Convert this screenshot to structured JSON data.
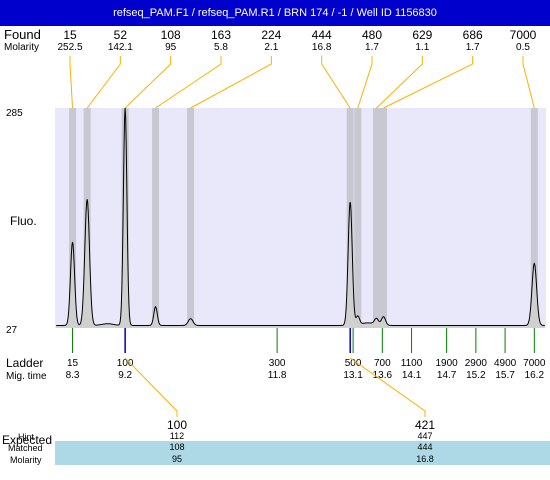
{
  "header": {
    "title": "refseq_PAM.F1 / refseq_PAM.R1 / BRN 174 / -1 / Well ID 1156830"
  },
  "labels": {
    "found": "Found",
    "molarity": "Molarity",
    "fluo": "Fluo.",
    "ladder": "Ladder",
    "mig_time": "Mig. time",
    "expected": "Expected",
    "hint": "Hint",
    "matched": "Matched",
    "molarity_bottom": "Molarity"
  },
  "colors": {
    "title_bar": "#0000cc",
    "plot_bg": "#e8e8fa",
    "peak_band": "#c8c8d2",
    "trace_fill": "#d0d0d0",
    "ladder_tick": "#008000",
    "matched_tick": "#0000cc",
    "leader_line": "#ffb000",
    "highlight_row": "#add8e6"
  },
  "chart_data": {
    "type": "line",
    "title": "refseq_PAM.F1 / refseq_PAM.R1 / BRN 174 / -1 / Well ID 1156830",
    "ylabel": "Fluo.",
    "ylim": [
      27,
      285
    ],
    "y_ticks": [
      "285",
      "27"
    ],
    "x_range_mig_time": [
      8.0,
      16.4
    ],
    "found_peaks": [
      {
        "size": "15",
        "molarity": "252.5",
        "time": 8.3,
        "height": 128
      },
      {
        "size": "52",
        "molarity": "142.1",
        "time": 8.55,
        "height": 178
      },
      {
        "size": "108",
        "molarity": "95",
        "time": 9.2,
        "height": 285
      },
      {
        "size": "163",
        "molarity": "5.8",
        "time": 9.72,
        "height": 52
      },
      {
        "size": "224",
        "molarity": "2.1",
        "time": 10.32,
        "height": 38
      },
      {
        "size": "444",
        "molarity": "16.8",
        "time": 13.05,
        "height": 175
      },
      {
        "size": "480",
        "molarity": "1.7",
        "time": 13.18,
        "height": 40
      },
      {
        "size": "629",
        "molarity": "1.1",
        "time": 13.5,
        "height": 37
      },
      {
        "size": "686",
        "molarity": "1.7",
        "time": 13.62,
        "height": 40
      },
      {
        "size": "7000",
        "molarity": "0.5",
        "time": 16.2,
        "height": 103
      }
    ],
    "ladder": [
      {
        "size": "15",
        "time": "8.3"
      },
      {
        "size": "100",
        "time": "9.2"
      },
      {
        "size": "300",
        "time": "11.8"
      },
      {
        "size": "500",
        "time": "13.1"
      },
      {
        "size": "700",
        "time": "13.6"
      },
      {
        "size": "1100",
        "time": "14.1"
      },
      {
        "size": "1900",
        "time": "14.7"
      },
      {
        "size": "2900",
        "time": "15.2"
      },
      {
        "size": "4900",
        "time": "15.7"
      },
      {
        "size": "7000",
        "time": "16.2"
      }
    ],
    "expected": [
      {
        "expected": "100",
        "hint": "112",
        "matched": "108",
        "molarity": "95",
        "time": 9.2
      },
      {
        "expected": "421",
        "hint": "447",
        "matched": "444",
        "molarity": "16.8",
        "time": 13.05
      }
    ]
  }
}
